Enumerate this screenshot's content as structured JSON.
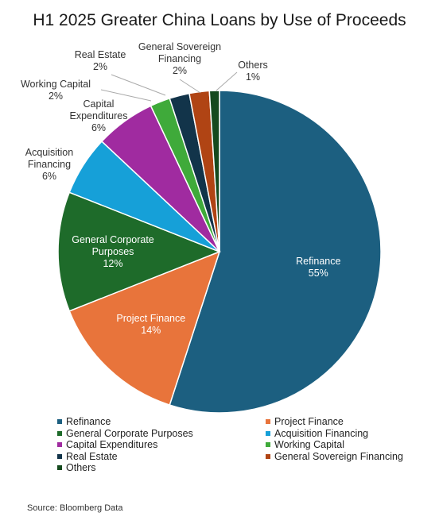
{
  "title": "H1 2025 Greater China Loans by Use of Proceeds",
  "source": "Source: Bloomberg Data",
  "chart_data": {
    "type": "pie",
    "title": "H1 2025 Greater China Loans by Use of Proceeds",
    "legend_position": "bottom",
    "slices": [
      {
        "name": "Refinance",
        "value": 55,
        "label": "55%",
        "color": "#1c5f80"
      },
      {
        "name": "Project Finance",
        "value": 14,
        "label": "14%",
        "color": "#e8743b"
      },
      {
        "name": "General Corporate Purposes",
        "value": 12,
        "label": "12%",
        "color": "#1e6b2a"
      },
      {
        "name": "Acquisition Financing",
        "value": 6,
        "label": "6%",
        "color": "#16a0d8"
      },
      {
        "name": "Capital Expenditures",
        "value": 6,
        "label": "6%",
        "color": "#a02ba0"
      },
      {
        "name": "Working Capital",
        "value": 2,
        "label": "2%",
        "color": "#3faa3a"
      },
      {
        "name": "Real Estate",
        "value": 2,
        "label": "2%",
        "color": "#12344a"
      },
      {
        "name": "General Sovereign Financing",
        "value": 2,
        "label": "2%",
        "color": "#b04414"
      },
      {
        "name": "Others",
        "value": 1,
        "label": "1%",
        "color": "#154a1e"
      }
    ]
  }
}
